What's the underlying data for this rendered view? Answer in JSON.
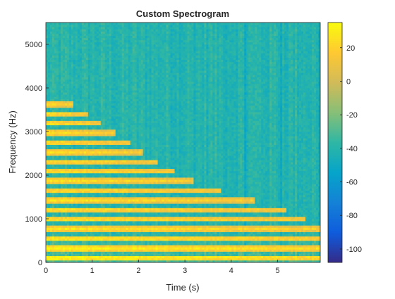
{
  "chart_data": {
    "type": "heatmap",
    "title": "Custom Spectrogram",
    "xlabel": "Time (s)",
    "ylabel": "Frequency (Hz)",
    "xlim": [
      0,
      5.92
    ],
    "ylim": [
      0,
      5500
    ],
    "x_ticks": [
      0,
      1,
      2,
      3,
      4,
      5
    ],
    "y_ticks": [
      0,
      1000,
      2000,
      3000,
      4000,
      5000
    ],
    "colorbar": {
      "colormap": "parula",
      "clim": [
        -108,
        35
      ],
      "ticks": [
        20,
        0,
        -20,
        -40,
        -60,
        -80,
        -100
      ]
    },
    "harmonics_hz": [
      110,
      330,
      550,
      770,
      990,
      1210,
      1430,
      1650,
      1870,
      2090,
      2310,
      2530,
      2750,
      2970,
      3190,
      3410,
      3630
    ],
    "harmonic_level_db": 28,
    "harmonic_decay_end_s": [
      5.92,
      5.92,
      5.92,
      5.9,
      5.6,
      5.2,
      4.5,
      3.8,
      3.2,
      2.8,
      2.4,
      2.1,
      1.8,
      1.5,
      1.2,
      0.9,
      0.6
    ],
    "background_level_db": -40
  }
}
